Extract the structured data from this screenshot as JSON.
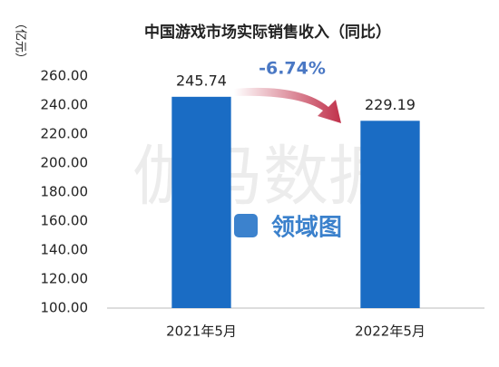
{
  "chart_data": {
    "type": "bar",
    "title": "中国游戏市场实际销售收入（同比）",
    "y_axis_label": "（亿元）",
    "categories": [
      "2021年5月",
      "2022年5月"
    ],
    "values": [
      245.74,
      229.19
    ],
    "color": "#1a6cc4",
    "ylim": [
      100,
      260
    ],
    "yticks": [
      {
        "value": 100,
        "label": "100.00"
      },
      {
        "value": 120,
        "label": "120.00"
      },
      {
        "value": 140,
        "label": "140.00"
      },
      {
        "value": 160,
        "label": "160.00"
      },
      {
        "value": 180,
        "label": "180.00"
      },
      {
        "value": 200,
        "label": "200.00"
      },
      {
        "value": 220,
        "label": "220.00"
      },
      {
        "value": 240,
        "label": "240.00"
      },
      {
        "value": 260,
        "label": "260.00"
      }
    ],
    "annotation": "-6.74%",
    "watermarks": [
      "伽马数据",
      "领域图"
    ],
    "grid": false
  }
}
